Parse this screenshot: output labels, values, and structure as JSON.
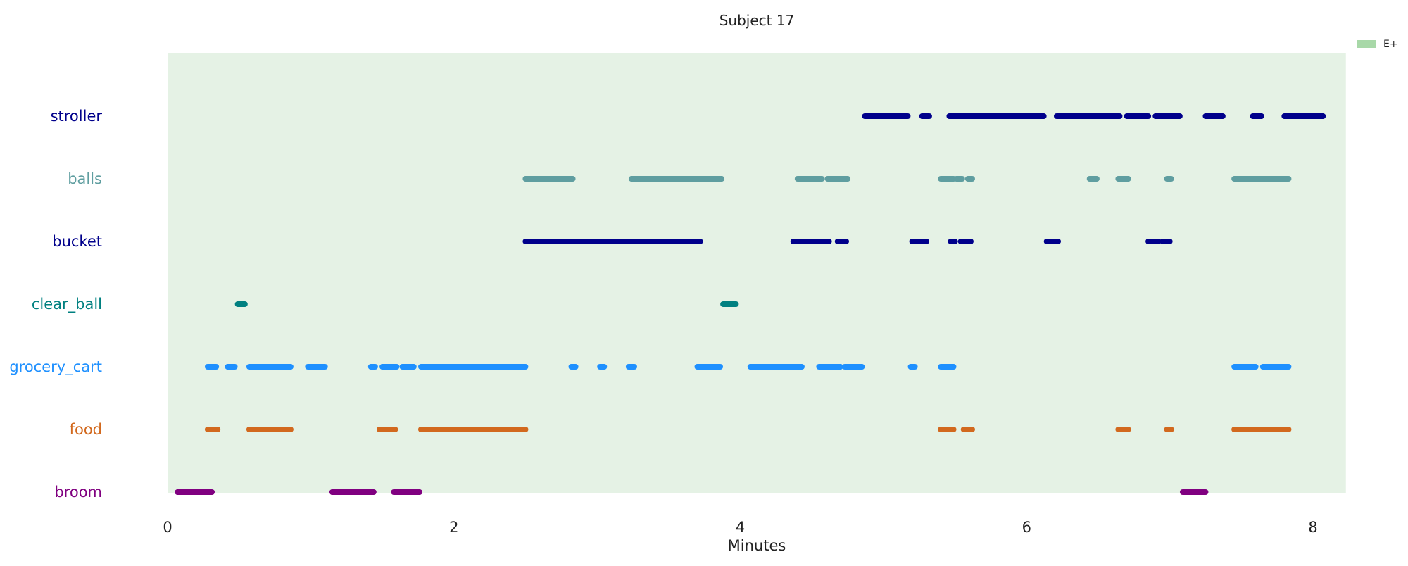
{
  "chart_data": {
    "type": "timeline",
    "title": "Subject 17",
    "xlabel": "Minutes",
    "ylabel": "",
    "xlim": [
      0,
      8.23
    ],
    "xticks": [
      0,
      2,
      4,
      6,
      8
    ],
    "grid": false,
    "legend": {
      "position": "top-right",
      "entries": [
        {
          "label": "E+",
          "color": "#a8d8a8"
        }
      ]
    },
    "background_band": {
      "label": "E+",
      "range": [
        0,
        8.23
      ],
      "color": "#e5f2e5"
    },
    "rows": [
      {
        "name": "stroller",
        "color": "#00008b",
        "intervals": [
          [
            4.87,
            5.17
          ],
          [
            5.27,
            5.32
          ],
          [
            5.46,
            6.12
          ],
          [
            6.21,
            6.65
          ],
          [
            6.7,
            6.85
          ],
          [
            6.9,
            7.07
          ],
          [
            7.25,
            7.37
          ],
          [
            7.58,
            7.64
          ],
          [
            7.8,
            8.07
          ]
        ]
      },
      {
        "name": "balls",
        "color": "#5f9ea0",
        "intervals": [
          [
            2.5,
            2.83
          ],
          [
            3.24,
            3.87
          ],
          [
            4.4,
            4.57
          ],
          [
            4.61,
            4.75
          ],
          [
            5.4,
            5.49
          ],
          [
            5.51,
            5.55
          ],
          [
            5.59,
            5.62
          ],
          [
            6.44,
            6.49
          ],
          [
            6.64,
            6.71
          ],
          [
            6.98,
            7.01
          ],
          [
            7.45,
            7.83
          ]
        ]
      },
      {
        "name": "bucket",
        "color": "#00008b",
        "intervals": [
          [
            2.5,
            3.72
          ],
          [
            4.37,
            4.62
          ],
          [
            4.68,
            4.74
          ],
          [
            5.2,
            5.3
          ],
          [
            5.47,
            5.5
          ],
          [
            5.54,
            5.61
          ],
          [
            6.14,
            6.22
          ],
          [
            6.85,
            6.92
          ],
          [
            6.95,
            7.0
          ]
        ]
      },
      {
        "name": "clear_ball",
        "color": "#008080",
        "intervals": [
          [
            0.49,
            0.54
          ],
          [
            3.88,
            3.97
          ]
        ]
      },
      {
        "name": "grocery_cart",
        "color": "#1e90ff",
        "intervals": [
          [
            0.28,
            0.34
          ],
          [
            0.42,
            0.47
          ],
          [
            0.57,
            0.86
          ],
          [
            0.98,
            1.1
          ],
          [
            1.42,
            1.45
          ],
          [
            1.5,
            1.6
          ],
          [
            1.64,
            1.72
          ],
          [
            1.77,
            2.5
          ],
          [
            2.82,
            2.85
          ],
          [
            3.02,
            3.05
          ],
          [
            3.22,
            3.26
          ],
          [
            3.7,
            3.86
          ],
          [
            4.07,
            4.43
          ],
          [
            4.55,
            4.7
          ],
          [
            4.73,
            4.85
          ],
          [
            5.19,
            5.22
          ],
          [
            5.4,
            5.49
          ],
          [
            7.45,
            7.6
          ],
          [
            7.65,
            7.83
          ]
        ]
      },
      {
        "name": "food",
        "color": "#d2691e",
        "intervals": [
          [
            0.28,
            0.35
          ],
          [
            0.57,
            0.86
          ],
          [
            1.48,
            1.59
          ],
          [
            1.77,
            2.5
          ],
          [
            5.4,
            5.49
          ],
          [
            5.56,
            5.62
          ],
          [
            6.64,
            6.71
          ],
          [
            6.98,
            7.01
          ],
          [
            7.45,
            7.83
          ]
        ]
      },
      {
        "name": "broom",
        "color": "#800080",
        "intervals": [
          [
            0.07,
            0.31
          ],
          [
            1.15,
            1.44
          ],
          [
            1.58,
            1.76
          ],
          [
            7.09,
            7.25
          ]
        ]
      }
    ]
  }
}
